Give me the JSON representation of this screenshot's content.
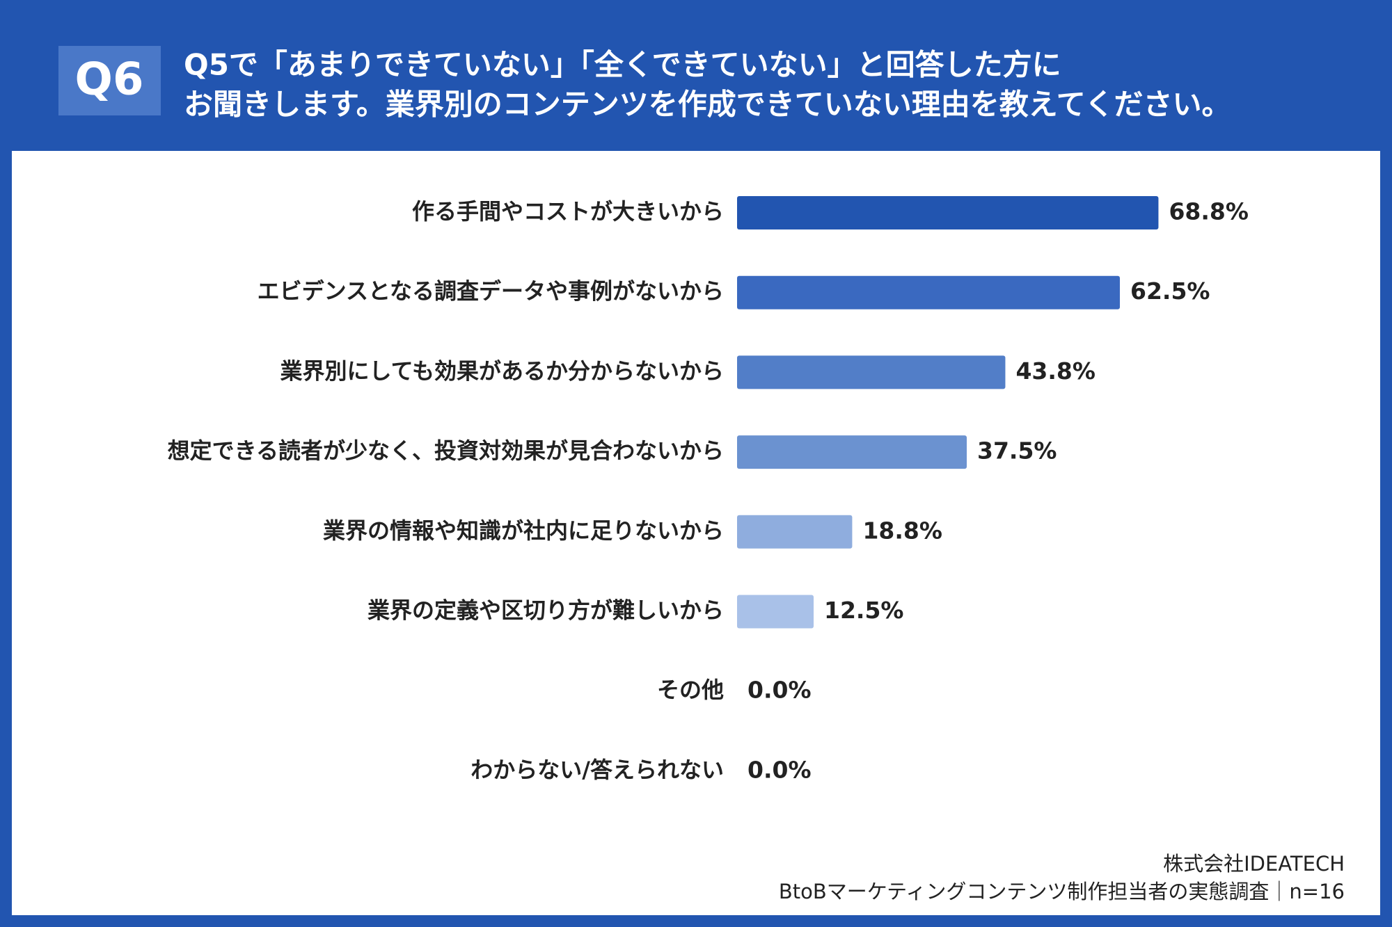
{
  "chart_data": {
    "type": "barh",
    "question_number": "Q6",
    "title": [
      "Q5で「あまりできていない」「全くできていない」と回答した方に",
      "お聞きします。業界別のコンテンツを作成できていない理由を教えてください。"
    ],
    "categories": [
      "作る手間やコストが大きいから",
      "エビデンスとなる調査データや事例がないから",
      "業界別にしても効果があるか分からないから",
      "想定できる読者が少なく、投資対効果が見合わないから",
      "業界の情報や知識が社内に足りないから",
      "業界の定義や区切り方が難しいから",
      "その他",
      "わからない/答えられない"
    ],
    "values": [
      68.8,
      62.5,
      43.8,
      37.5,
      18.8,
      12.5,
      0.0,
      0.0
    ],
    "value_labels": [
      "68.8%",
      "62.5%",
      "43.8%",
      "37.5%",
      "18.8%",
      "12.5%",
      "0.0%",
      "0.0%"
    ],
    "colors": [
      "#2255b0",
      "#3a69c0",
      "#527ec8",
      "#6b92d0",
      "#8fadde",
      "#a9c1e8",
      "#bccfee",
      "#bccfee"
    ],
    "xlim": [
      0,
      100
    ],
    "source": [
      "株式会社IDEATECH",
      "BtoBマーケティングコンテンツ制作担当者の実態調査｜n=16"
    ]
  }
}
